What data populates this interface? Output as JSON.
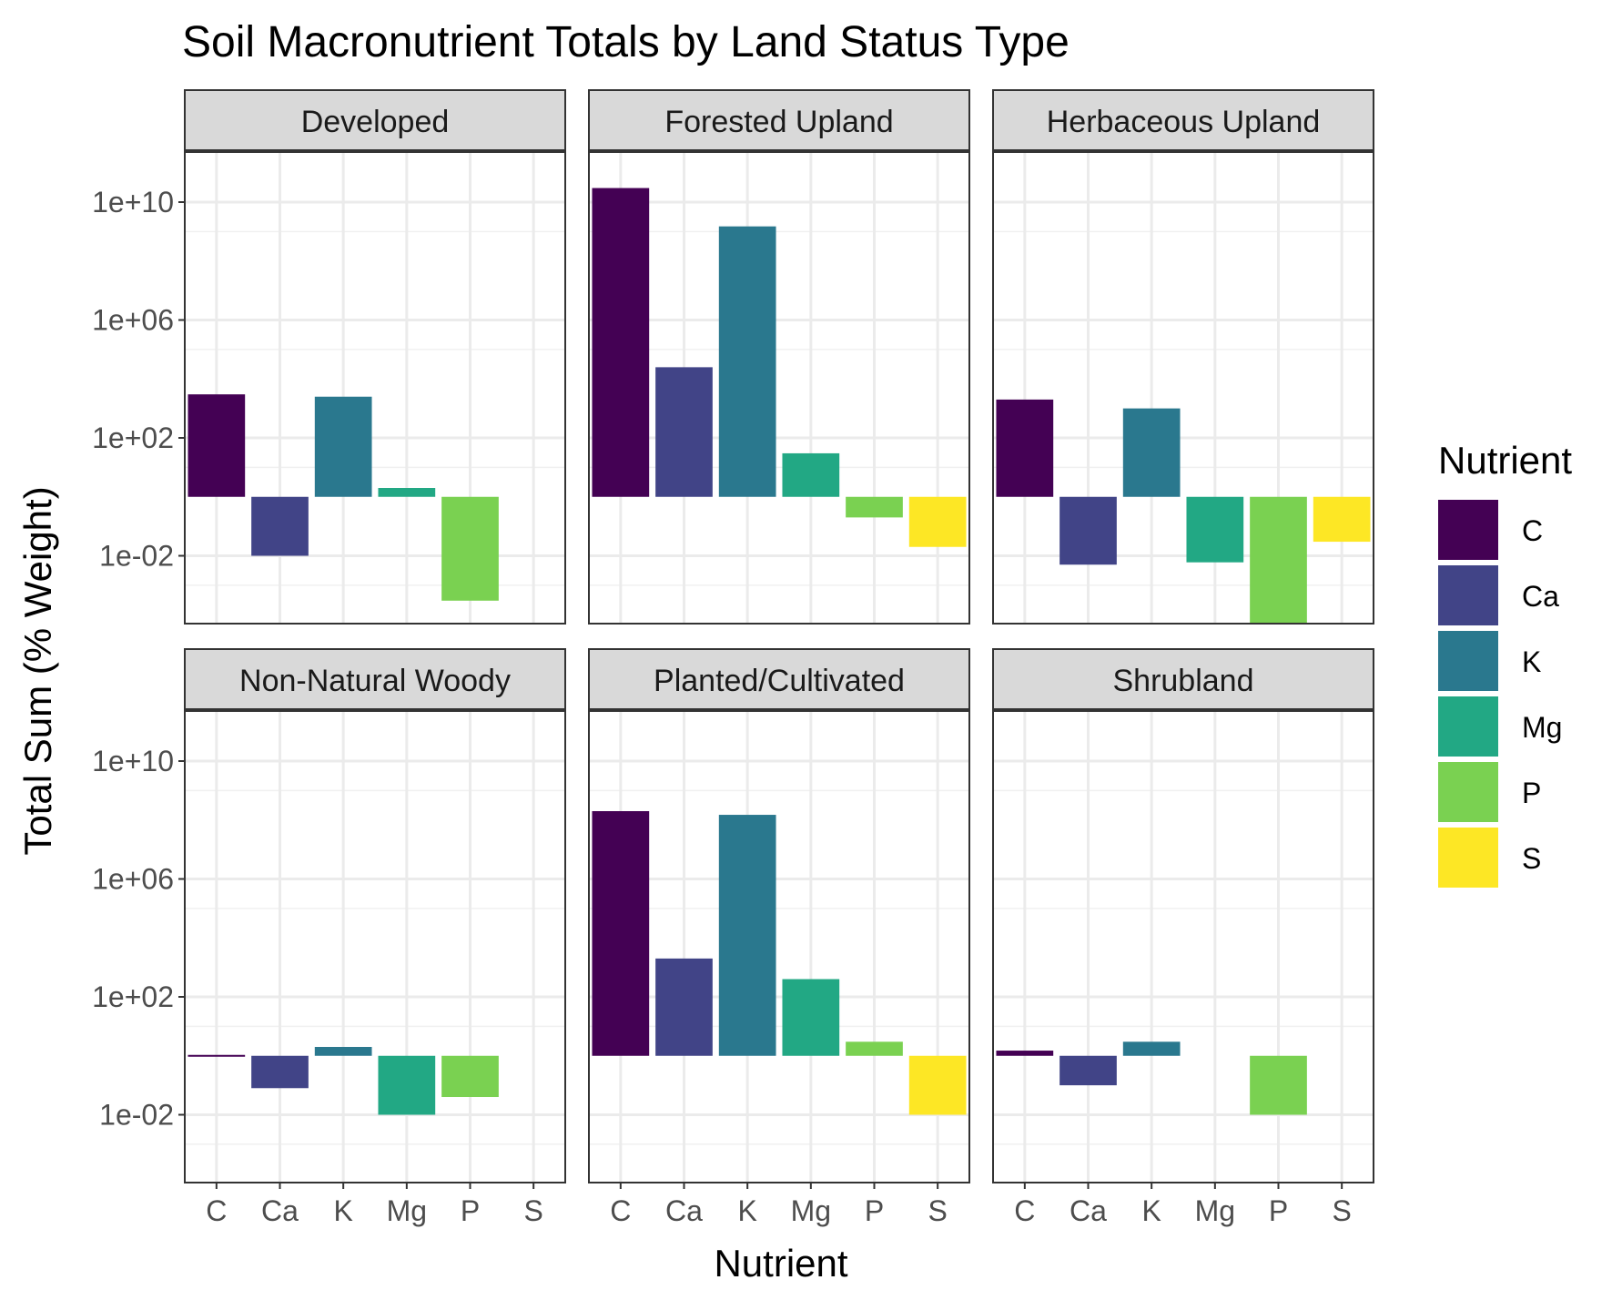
{
  "chart_data": {
    "type": "bar",
    "title": "Soil Macronutrient Totals by Land Status Type",
    "xlabel": "Nutrient",
    "ylabel": "Total Sum (% Weight)",
    "y_scale": "log10",
    "y_ticks": [
      0.01,
      100,
      1000000,
      10000000000
    ],
    "y_tick_labels": [
      "1e-02",
      "1e+02",
      "1e+06",
      "1e+10"
    ],
    "ylim": [
      5e-05,
      500000000000
    ],
    "bar_baseline": 1,
    "categories": [
      "C",
      "Ca",
      "K",
      "Mg",
      "P",
      "S"
    ],
    "grid": true,
    "legend": {
      "title": "Nutrient",
      "placement": "right",
      "entries": [
        "C",
        "Ca",
        "K",
        "Mg",
        "P",
        "S"
      ]
    },
    "colors": {
      "C": "#440154",
      "Ca": "#414487",
      "K": "#2A788E",
      "Mg": "#22A884",
      "P": "#7AD151",
      "S": "#FDE725"
    },
    "facets": [
      {
        "name": "Developed",
        "values": {
          "C": 3000,
          "Ca": 0.01,
          "K": 2500,
          "Mg": 2,
          "P": 0.0003,
          "S": null
        }
      },
      {
        "name": "Forested Upland",
        "values": {
          "C": 30000000000,
          "Ca": 25000,
          "K": 1500000000,
          "Mg": 30,
          "P": 0.2,
          "S": 0.02
        }
      },
      {
        "name": "Herbaceous Upland",
        "values": {
          "C": 2000,
          "Ca": 0.005,
          "K": 1000,
          "Mg": 0.006,
          "P": 5e-05,
          "S": 0.03
        }
      },
      {
        "name": "Non-Natural Woody",
        "values": {
          "C": 1.02,
          "Ca": 0.08,
          "K": 2,
          "Mg": 0.01,
          "P": 0.04,
          "S": null
        }
      },
      {
        "name": "Planted/Cultivated",
        "values": {
          "C": 200000000,
          "Ca": 2000,
          "K": 150000000,
          "Mg": 400,
          "P": 3,
          "S": 0.01
        }
      },
      {
        "name": "Shrubland",
        "values": {
          "C": 1.5,
          "Ca": 0.1,
          "K": 3,
          "Mg": null,
          "P": 0.01,
          "S": null
        }
      }
    ]
  }
}
